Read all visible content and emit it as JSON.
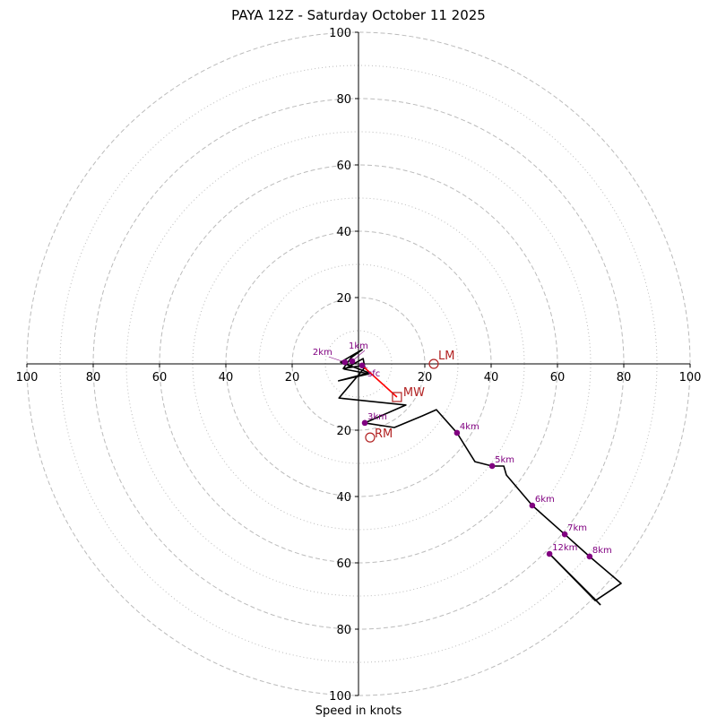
{
  "chart_data": {
    "type": "hodograph",
    "title": "PAYA 12Z - Saturday October 11 2025",
    "xlabel": "Speed in knots",
    "max_speed": 100,
    "ring_major": [
      20,
      40,
      60,
      80,
      100
    ],
    "ring_minor": [
      10,
      30,
      50,
      70,
      90
    ],
    "tick_labels": [
      "20",
      "40",
      "60",
      "80",
      "100"
    ],
    "grid": true,
    "colors": {
      "trace": "#000000",
      "height_point": "#800080",
      "motion": "#b22222",
      "mean_wind_vector": "#ff0000",
      "grid": "#bbbbbb"
    },
    "trace": [
      {
        "u": 1.0,
        "v": -0.5
      },
      {
        "u": -4.6,
        "v": -1.4
      },
      {
        "u": -2.2,
        "v": 1.9
      },
      {
        "u": 1.1,
        "v": 4.3
      },
      {
        "u": -5.4,
        "v": 0.5
      },
      {
        "u": 3.2,
        "v": -2.7
      },
      {
        "u": -6.0,
        "v": -5.1
      },
      {
        "u": 3.2,
        "v": -3.0
      },
      {
        "u": -4.3,
        "v": -1.6
      },
      {
        "u": 1.4,
        "v": 1.6
      },
      {
        "u": 1.9,
        "v": -1.1
      },
      {
        "u": -5.9,
        "v": -10.3
      },
      {
        "u": 14.3,
        "v": -12.4
      },
      {
        "u": 1.9,
        "v": -17.8
      },
      {
        "u": 10.8,
        "v": -19.2
      },
      {
        "u": 19.2,
        "v": -15.7
      },
      {
        "u": 23.5,
        "v": -13.8
      },
      {
        "u": 29.7,
        "v": -20.8
      },
      {
        "u": 35.1,
        "v": -29.5
      },
      {
        "u": 40.3,
        "v": -30.8
      },
      {
        "u": 43.8,
        "v": -30.8
      },
      {
        "u": 44.6,
        "v": -33.5
      },
      {
        "u": 52.4,
        "v": -42.7
      },
      {
        "u": 62.2,
        "v": -51.4
      },
      {
        "u": 69.7,
        "v": -58.1
      },
      {
        "u": 79.2,
        "v": -66.2
      },
      {
        "u": 71.4,
        "v": -71.4
      },
      {
        "u": 57.6,
        "v": -57.3
      },
      {
        "u": 73.0,
        "v": -72.7
      }
    ],
    "height_points": [
      {
        "label": "sfc",
        "u": 1.1,
        "v": -0.5
      },
      {
        "label": "1km",
        "u": -1.9,
        "v": 0.8
      },
      {
        "label": "2km",
        "u": -4.1,
        "v": 0.5
      },
      {
        "label": "3km",
        "u": 1.9,
        "v": -17.8
      },
      {
        "label": "4km",
        "u": 29.7,
        "v": -20.8
      },
      {
        "label": "5km",
        "u": 40.3,
        "v": -30.8
      },
      {
        "label": "6km",
        "u": 52.4,
        "v": -42.7
      },
      {
        "label": "7km",
        "u": 62.2,
        "v": -51.4
      },
      {
        "label": "8km",
        "u": 69.7,
        "v": -58.1
      },
      {
        "label": "12km",
        "u": 57.6,
        "v": -57.3
      }
    ],
    "storm_motion": [
      {
        "label": "LM",
        "u": 22.7,
        "v": 0.0,
        "marker": "circle"
      },
      {
        "label": "RM",
        "u": 3.5,
        "v": -22.2,
        "marker": "circle"
      },
      {
        "label": "MW",
        "u": 11.6,
        "v": -10.0,
        "marker": "square"
      }
    ],
    "mean_wind_vector": {
      "from": {
        "u": 1.1,
        "v": -0.5
      },
      "to": {
        "u": 11.6,
        "v": -10.0
      }
    }
  }
}
